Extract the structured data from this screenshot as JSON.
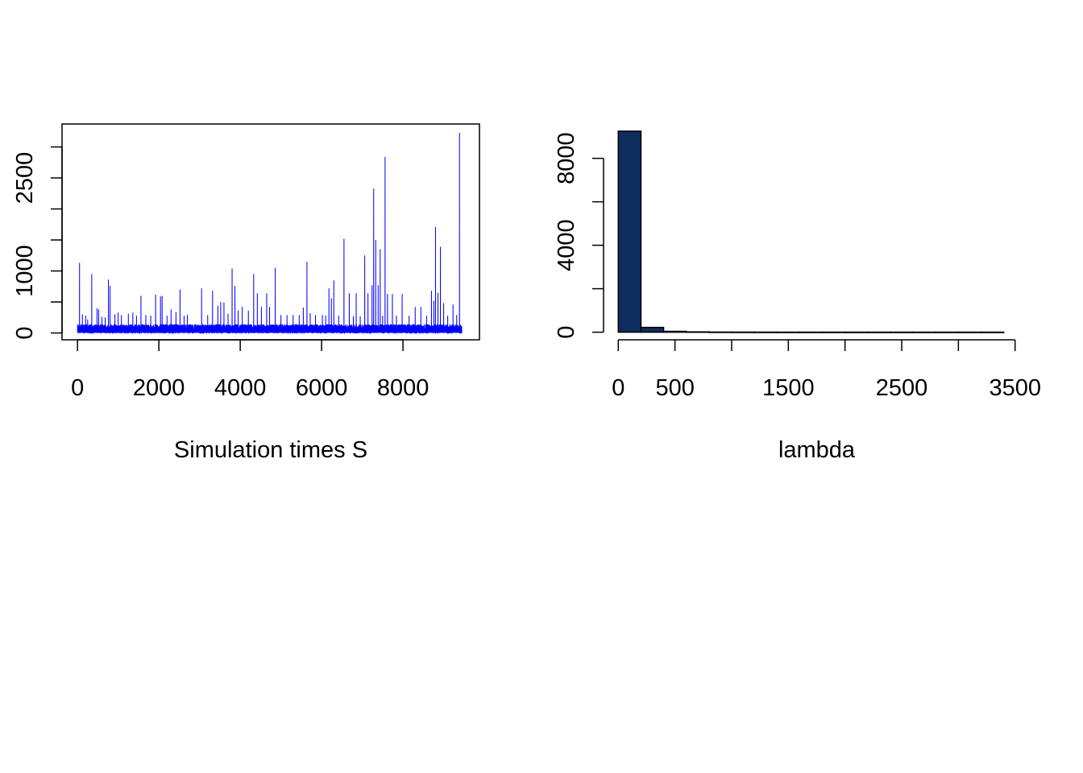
{
  "chart_data": [
    {
      "type": "line",
      "title": "",
      "xlabel": "Simulation times S",
      "ylabel": "",
      "xlim": [
        -380,
        9880
      ],
      "ylim": [
        -110,
        3370
      ],
      "x_ticks": [
        {
          "value": 0,
          "label": "0"
        },
        {
          "value": 2000,
          "label": "2000"
        },
        {
          "value": 4000,
          "label": "4000"
        },
        {
          "value": 6000,
          "label": "6000"
        },
        {
          "value": 8000,
          "label": "8000"
        }
      ],
      "y_ticks": [
        {
          "value": 0,
          "label": "0"
        },
        {
          "value": 500,
          "label": ""
        },
        {
          "value": 1000,
          "label": "1000"
        },
        {
          "value": 1500,
          "label": ""
        },
        {
          "value": 2000,
          "label": ""
        },
        {
          "value": 2500,
          "label": "2500"
        },
        {
          "value": 3000,
          "label": ""
        }
      ],
      "series_color": "#0000ff",
      "n_points": 9450,
      "baseline_max": 140,
      "spikes": [
        [
          50,
          1130
        ],
        [
          120,
          300
        ],
        [
          200,
          280
        ],
        [
          250,
          220
        ],
        [
          350,
          950
        ],
        [
          480,
          400
        ],
        [
          520,
          380
        ],
        [
          600,
          260
        ],
        [
          680,
          250
        ],
        [
          760,
          860
        ],
        [
          800,
          760
        ],
        [
          920,
          300
        ],
        [
          1000,
          330
        ],
        [
          1080,
          290
        ],
        [
          1250,
          310
        ],
        [
          1360,
          330
        ],
        [
          1450,
          280
        ],
        [
          1560,
          600
        ],
        [
          1680,
          290
        ],
        [
          1800,
          280
        ],
        [
          1920,
          620
        ],
        [
          2040,
          590
        ],
        [
          2080,
          600
        ],
        [
          2200,
          280
        ],
        [
          2300,
          380
        ],
        [
          2420,
          340
        ],
        [
          2520,
          700
        ],
        [
          2620,
          280
        ],
        [
          2700,
          290
        ],
        [
          3050,
          720
        ],
        [
          3200,
          290
        ],
        [
          3320,
          680
        ],
        [
          3450,
          440
        ],
        [
          3520,
          500
        ],
        [
          3600,
          490
        ],
        [
          3700,
          310
        ],
        [
          3800,
          1040
        ],
        [
          3870,
          760
        ],
        [
          3950,
          360
        ],
        [
          4050,
          420
        ],
        [
          4200,
          360
        ],
        [
          4330,
          950
        ],
        [
          4420,
          640
        ],
        [
          4520,
          420
        ],
        [
          4650,
          640
        ],
        [
          4720,
          420
        ],
        [
          4860,
          1050
        ],
        [
          5000,
          290
        ],
        [
          5150,
          290
        ],
        [
          5300,
          290
        ],
        [
          5450,
          290
        ],
        [
          5550,
          410
        ],
        [
          5640,
          1150
        ],
        [
          5720,
          320
        ],
        [
          5850,
          290
        ],
        [
          6020,
          290
        ],
        [
          6100,
          280
        ],
        [
          6180,
          720
        ],
        [
          6240,
          560
        ],
        [
          6300,
          850
        ],
        [
          6420,
          280
        ],
        [
          6550,
          1520
        ],
        [
          6680,
          640
        ],
        [
          6780,
          270
        ],
        [
          6850,
          640
        ],
        [
          6950,
          270
        ],
        [
          7060,
          1250
        ],
        [
          7140,
          640
        ],
        [
          7240,
          770
        ],
        [
          7280,
          2330
        ],
        [
          7330,
          1500
        ],
        [
          7390,
          770
        ],
        [
          7440,
          1350
        ],
        [
          7500,
          280
        ],
        [
          7560,
          2840
        ],
        [
          7620,
          630
        ],
        [
          7740,
          630
        ],
        [
          7840,
          280
        ],
        [
          7980,
          630
        ],
        [
          8150,
          280
        ],
        [
          8300,
          420
        ],
        [
          8440,
          420
        ],
        [
          8580,
          280
        ],
        [
          8700,
          680
        ],
        [
          8760,
          520
        ],
        [
          8800,
          1710
        ],
        [
          8860,
          650
        ],
        [
          8920,
          1390
        ],
        [
          9000,
          480
        ],
        [
          9100,
          280
        ],
        [
          9230,
          460
        ],
        [
          9320,
          290
        ],
        [
          9390,
          3230
        ]
      ]
    },
    {
      "type": "bar",
      "title": "",
      "xlabel": "lambda",
      "ylabel": "",
      "xlim": [
        -130,
        3630
      ],
      "ylim": [
        -350,
        9580
      ],
      "x_ticks": [
        {
          "value": 0,
          "label": "0"
        },
        {
          "value": 500,
          "label": "500"
        },
        {
          "value": 1000,
          "label": ""
        },
        {
          "value": 1500,
          "label": "1500"
        },
        {
          "value": 2000,
          "label": ""
        },
        {
          "value": 2500,
          "label": "2500"
        },
        {
          "value": 3000,
          "label": ""
        },
        {
          "value": 3500,
          "label": "3500"
        }
      ],
      "y_ticks": [
        {
          "value": 0,
          "label": "0"
        },
        {
          "value": 2000,
          "label": ""
        },
        {
          "value": 4000,
          "label": "4000"
        },
        {
          "value": 6000,
          "label": ""
        },
        {
          "value": 8000,
          "label": "8000"
        }
      ],
      "bar_color": "#0c2d5e",
      "bin_width": 200,
      "bins_start": [
        0,
        200,
        400,
        600,
        800,
        1000,
        1200,
        1400,
        1600,
        1800,
        2000,
        2200,
        2400,
        2600,
        2800,
        3000,
        3200
      ],
      "values": [
        9250,
        220,
        40,
        15,
        6,
        4,
        3,
        2,
        2,
        2,
        1,
        1,
        1,
        1,
        1,
        1,
        1
      ]
    }
  ]
}
